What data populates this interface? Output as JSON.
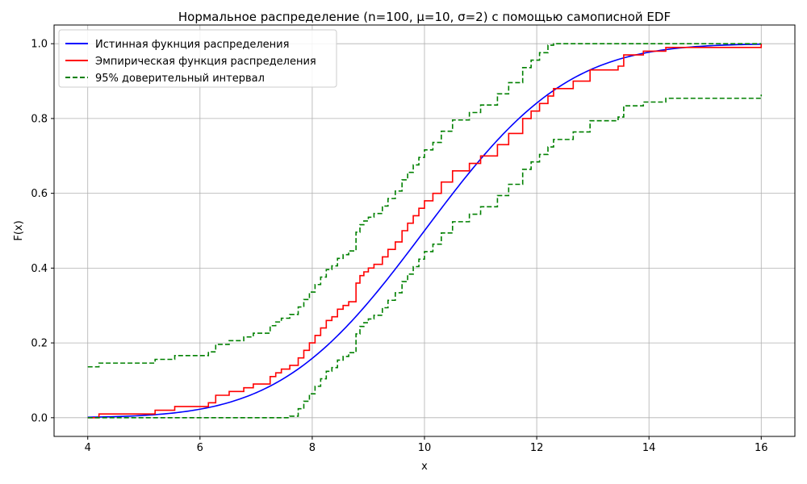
{
  "chart_data": {
    "type": "line",
    "title": "Нормальное распределение (n=100, μ=10, σ=2) с помощью самописной EDF",
    "xlabel": "x",
    "ylabel": "F(x)",
    "xlim": [
      3.4,
      16.6
    ],
    "ylim": [
      -0.05,
      1.05
    ],
    "xticks": [
      4,
      6,
      8,
      10,
      12,
      14,
      16
    ],
    "xtick_labels": [
      "4",
      "6",
      "8",
      "10",
      "12",
      "14",
      "16"
    ],
    "yticks": [
      0.0,
      0.2,
      0.4,
      0.6,
      0.8,
      1.0
    ],
    "ytick_labels": [
      "0.0",
      "0.2",
      "0.4",
      "0.6",
      "0.8",
      "1.0"
    ],
    "grid": true,
    "legend_position": "top-left",
    "series": [
      {
        "name": "Истинная фукнция распределения",
        "color": "#0000ff",
        "style": "solid",
        "kind": "normal-cdf",
        "mu": 10,
        "sigma": 2,
        "x_range": [
          4,
          16
        ]
      },
      {
        "name": "Эмпирическая функция распределения",
        "color": "#ff0000",
        "style": "solid",
        "kind": "step",
        "x": [
          4.0,
          4.2,
          5.2,
          5.55,
          6.15,
          6.28,
          6.52,
          6.78,
          6.95,
          7.25,
          7.35,
          7.45,
          7.6,
          7.75,
          7.85,
          7.95,
          8.05,
          8.15,
          8.25,
          8.35,
          8.45,
          8.55,
          8.65,
          8.78,
          8.85,
          8.92,
          9.0,
          9.1,
          9.25,
          9.35,
          9.48,
          9.6,
          9.7,
          9.8,
          9.9,
          10.0,
          10.15,
          10.3,
          10.5,
          10.8,
          11.0,
          11.3,
          11.5,
          11.75,
          11.9,
          12.05,
          12.2,
          12.3,
          12.65,
          12.95,
          13.45,
          13.55,
          13.9,
          14.3,
          16.0
        ],
        "y": [
          0.0,
          0.01,
          0.02,
          0.03,
          0.04,
          0.06,
          0.07,
          0.08,
          0.09,
          0.11,
          0.12,
          0.13,
          0.14,
          0.16,
          0.18,
          0.2,
          0.22,
          0.24,
          0.26,
          0.27,
          0.29,
          0.3,
          0.31,
          0.36,
          0.38,
          0.39,
          0.4,
          0.41,
          0.43,
          0.45,
          0.47,
          0.5,
          0.52,
          0.54,
          0.56,
          0.58,
          0.6,
          0.63,
          0.66,
          0.68,
          0.7,
          0.73,
          0.76,
          0.8,
          0.82,
          0.84,
          0.86,
          0.88,
          0.9,
          0.93,
          0.94,
          0.97,
          0.98,
          0.99,
          1.0
        ]
      },
      {
        "name": "95% доверительный интервал",
        "color": "#008000",
        "style": "dashed",
        "kind": "step",
        "x": [
          4.0,
          4.2,
          5.2,
          5.55,
          6.15,
          6.28,
          6.52,
          6.78,
          6.95,
          7.25,
          7.35,
          7.45,
          7.6,
          7.75,
          7.85,
          7.95,
          8.05,
          8.15,
          8.25,
          8.35,
          8.45,
          8.55,
          8.65,
          8.78,
          8.85,
          8.92,
          9.0,
          9.1,
          9.25,
          9.35,
          9.48,
          9.6,
          9.7,
          9.8,
          9.9,
          10.0,
          10.15,
          10.3,
          10.5,
          10.8,
          11.0,
          11.3,
          11.5,
          11.75,
          11.9,
          12.05,
          12.2,
          12.3,
          16.0
        ],
        "y": [
          0.136,
          0.146,
          0.156,
          0.166,
          0.176,
          0.196,
          0.206,
          0.216,
          0.226,
          0.246,
          0.256,
          0.266,
          0.276,
          0.296,
          0.316,
          0.336,
          0.356,
          0.376,
          0.396,
          0.406,
          0.426,
          0.436,
          0.446,
          0.496,
          0.516,
          0.526,
          0.536,
          0.546,
          0.566,
          0.586,
          0.606,
          0.636,
          0.656,
          0.676,
          0.696,
          0.716,
          0.736,
          0.766,
          0.796,
          0.816,
          0.836,
          0.866,
          0.896,
          0.936,
          0.956,
          0.976,
          0.996,
          1.0,
          1.0
        ]
      },
      {
        "name": "",
        "color": "#008000",
        "style": "dashed",
        "kind": "step",
        "x": [
          4.0,
          7.6,
          7.75,
          7.85,
          7.95,
          8.05,
          8.15,
          8.25,
          8.35,
          8.45,
          8.55,
          8.65,
          8.78,
          8.85,
          8.92,
          9.0,
          9.1,
          9.25,
          9.35,
          9.48,
          9.6,
          9.7,
          9.8,
          9.9,
          10.0,
          10.15,
          10.3,
          10.5,
          10.8,
          11.0,
          11.3,
          11.5,
          11.75,
          11.9,
          12.05,
          12.2,
          12.3,
          12.65,
          12.95,
          13.45,
          13.55,
          13.9,
          14.3,
          16.0
        ],
        "y": [
          0.0,
          0.004,
          0.024,
          0.044,
          0.064,
          0.084,
          0.104,
          0.124,
          0.134,
          0.154,
          0.164,
          0.174,
          0.224,
          0.244,
          0.254,
          0.264,
          0.274,
          0.294,
          0.314,
          0.334,
          0.364,
          0.384,
          0.404,
          0.424,
          0.444,
          0.464,
          0.494,
          0.524,
          0.544,
          0.564,
          0.594,
          0.624,
          0.664,
          0.684,
          0.704,
          0.724,
          0.744,
          0.764,
          0.794,
          0.804,
          0.834,
          0.844,
          0.854,
          0.864
        ]
      }
    ]
  }
}
